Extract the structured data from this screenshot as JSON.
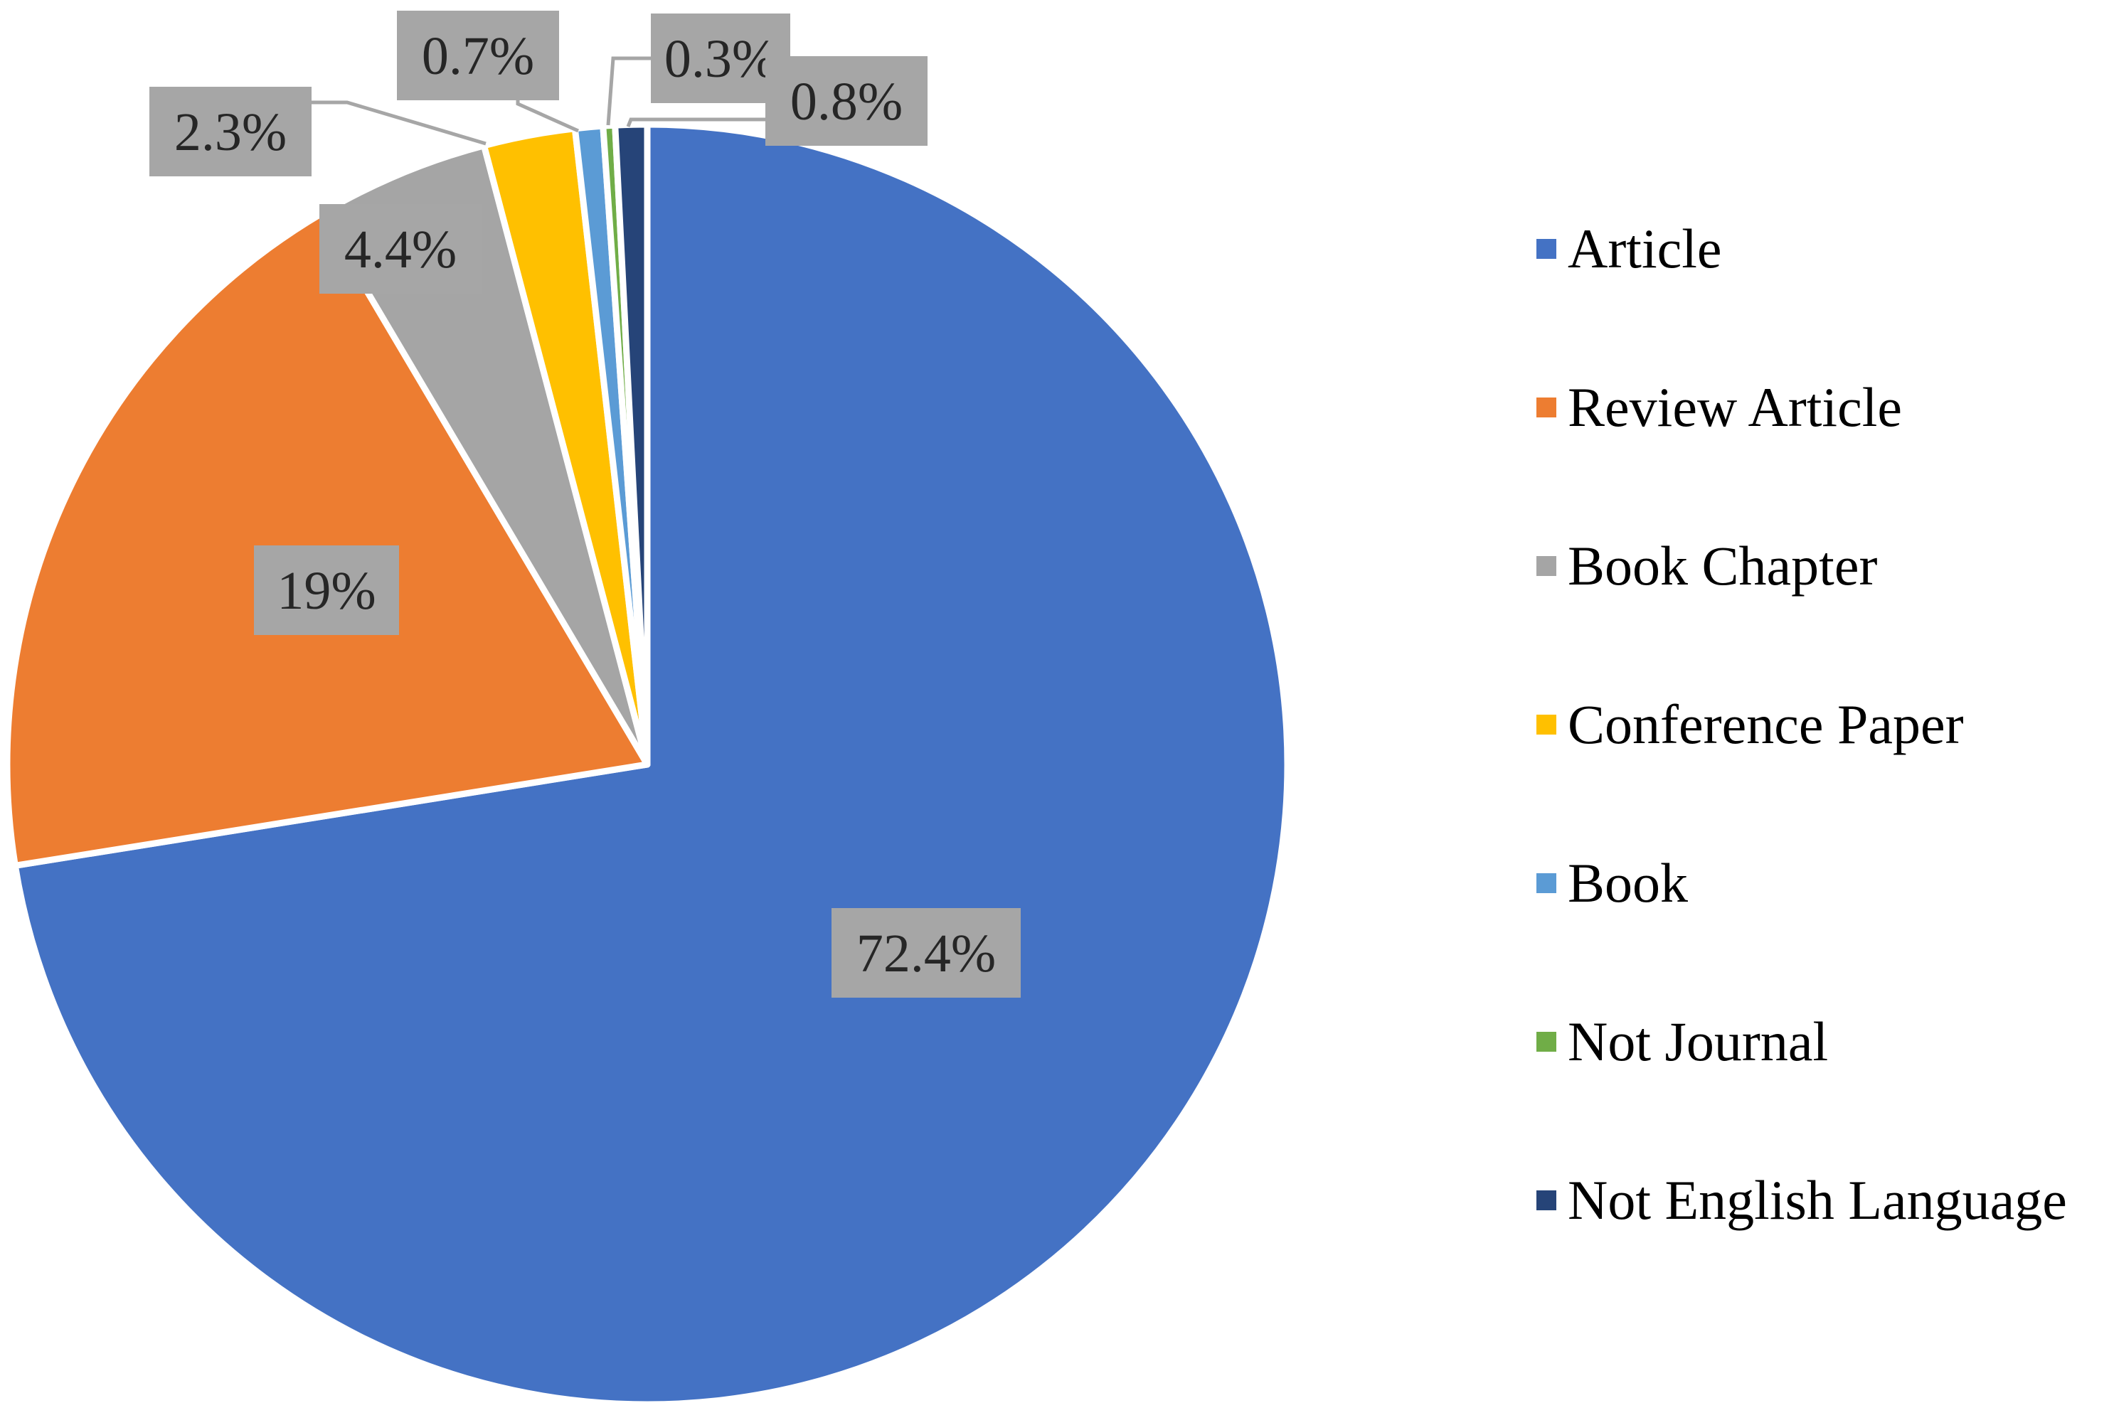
{
  "chart_data": {
    "type": "pie",
    "title": "",
    "categories": [
      "Article",
      "Review Article",
      "Book Chapter",
      "Conference Paper",
      "Book",
      "Not Journal",
      "Not English Language"
    ],
    "values": [
      72.4,
      19,
      4.4,
      2.3,
      0.7,
      0.3,
      0.8
    ],
    "data_labels": [
      "72.4%",
      "19%",
      "4.4%",
      "2.3%",
      "0.7%",
      "0.3%",
      "0.8%"
    ],
    "colors": [
      "#4472C4",
      "#ED7D31",
      "#A5A5A5",
      "#FFC000",
      "#5B9BD5",
      "#70AD47",
      "#264478"
    ],
    "label_background": "#A6A6A6",
    "start_angle": "12 o'clock",
    "direction": "clockwise",
    "legend_position": "right"
  }
}
